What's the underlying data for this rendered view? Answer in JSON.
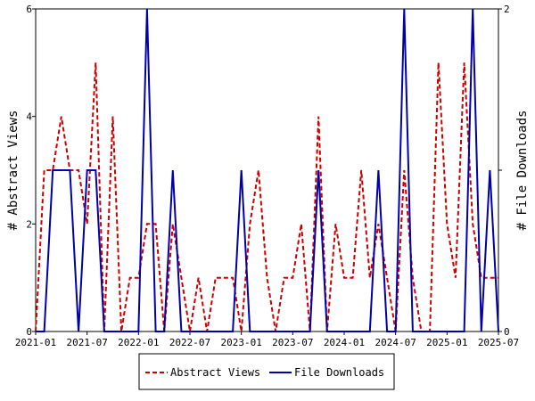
{
  "chart_data": {
    "type": "line",
    "x": [
      "2021-01",
      "2021-02",
      "2021-03",
      "2021-04",
      "2021-05",
      "2021-06",
      "2021-07",
      "2021-08",
      "2021-09",
      "2021-10",
      "2021-11",
      "2021-12",
      "2022-01",
      "2022-02",
      "2022-03",
      "2022-04",
      "2022-05",
      "2022-06",
      "2022-07",
      "2022-08",
      "2022-09",
      "2022-10",
      "2022-11",
      "2022-12",
      "2023-01",
      "2023-02",
      "2023-03",
      "2023-04",
      "2023-05",
      "2023-06",
      "2023-07",
      "2023-08",
      "2023-09",
      "2023-10",
      "2023-11",
      "2023-12",
      "2024-01",
      "2024-02",
      "2024-03",
      "2024-04",
      "2024-05",
      "2024-06",
      "2024-07",
      "2024-08",
      "2024-09",
      "2024-10",
      "2024-11",
      "2024-12",
      "2025-01",
      "2025-02",
      "2025-03",
      "2025-04",
      "2025-05",
      "2025-06",
      "2025-07"
    ],
    "series": [
      {
        "name": "Abstract Views",
        "axis": "left",
        "color": "#cc0000",
        "style": "dashed",
        "values": [
          0,
          3,
          3,
          4,
          3,
          3,
          2,
          5,
          0,
          4,
          0,
          1,
          1,
          2,
          2,
          0,
          2,
          1,
          0,
          1,
          0,
          1,
          1,
          1,
          0,
          2,
          3,
          1,
          0,
          1,
          1,
          2,
          0,
          4,
          0,
          2,
          1,
          1,
          3,
          1,
          2,
          1,
          0,
          3,
          1,
          0,
          0,
          5,
          2,
          1,
          5,
          2,
          1,
          1,
          1
        ]
      },
      {
        "name": "File Downloads",
        "axis": "right",
        "color": "#0000aa",
        "style": "solid",
        "values": [
          0,
          0,
          1,
          1,
          1,
          0,
          1,
          1,
          0,
          0,
          0,
          0,
          0,
          2,
          0,
          0,
          1,
          0,
          0,
          0,
          0,
          0,
          0,
          0,
          1,
          0,
          0,
          0,
          0,
          0,
          0,
          0,
          0,
          1,
          0,
          0,
          0,
          0,
          0,
          0,
          1,
          0,
          0,
          2,
          0,
          0,
          0,
          0,
          0,
          0,
          0,
          2,
          0,
          1,
          0
        ]
      }
    ],
    "x_ticks": [
      "2021-01",
      "2021-07",
      "2022-01",
      "2022-07",
      "2023-01",
      "2023-07",
      "2024-01",
      "2024-07",
      "2025-01",
      "2025-07"
    ],
    "y_left": {
      "label": "# Abstract Views",
      "ylim": [
        0,
        6
      ],
      "ticks": [
        "0",
        "2",
        "4",
        "6"
      ]
    },
    "y_right": {
      "label": "# File Downloads",
      "ylim": [
        0,
        2
      ],
      "ticks": [
        "0",
        "1",
        "2"
      ]
    },
    "legend": {
      "placement": "bottom-center",
      "entries": [
        "Abstract Views",
        "File Downloads"
      ]
    },
    "grid": false
  }
}
